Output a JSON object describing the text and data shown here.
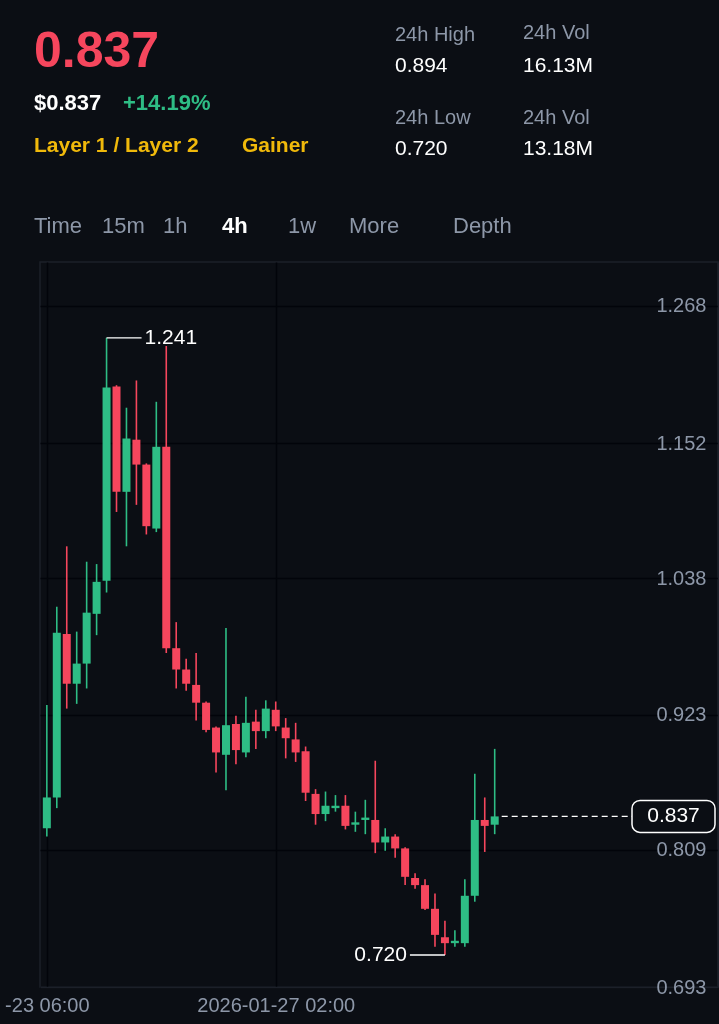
{
  "chart_data": {
    "type": "candlestick",
    "title": "0.837",
    "x": [
      "2026-01-23T06:00",
      "2026-01-23T10:00",
      "2026-01-23T14:00",
      "2026-01-23T18:00",
      "2026-01-23T22:00",
      "2026-01-24T02:00",
      "2026-01-24T06:00",
      "2026-01-24T10:00",
      "2026-01-24T14:00",
      "2026-01-24T18:00",
      "2026-01-24T22:00",
      "2026-01-25T02:00",
      "2026-01-25T06:00",
      "2026-01-25T10:00",
      "2026-01-25T14:00",
      "2026-01-25T18:00",
      "2026-01-25T22:00",
      "2026-01-26T02:00",
      "2026-01-26T06:00",
      "2026-01-26T10:00",
      "2026-01-26T14:00",
      "2026-01-26T18:00",
      "2026-01-26T22:00",
      "2026-01-27T02:00",
      "2026-01-27T06:00",
      "2026-01-27T10:00",
      "2026-01-27T14:00",
      "2026-01-27T18:00",
      "2026-01-27T22:00",
      "2026-01-28T02:00",
      "2026-01-28T06:00",
      "2026-01-28T10:00",
      "2026-01-28T14:00",
      "2026-01-28T18:00",
      "2026-01-28T22:00",
      "2026-01-29T02:00",
      "2026-01-29T06:00",
      "2026-01-29T10:00",
      "2026-01-29T14:00",
      "2026-01-29T18:00",
      "2026-01-29T22:00",
      "2026-01-30T02:00",
      "2026-01-30T06:00",
      "2026-01-30T10:00",
      "2026-01-30T14:00",
      "2026-01-30T18:00"
    ],
    "ohlc": [
      [
        0.827,
        0.931,
        0.82,
        0.853
      ],
      [
        0.853,
        1.014,
        0.844,
        0.992
      ],
      [
        0.991,
        1.065,
        0.928,
        0.949
      ],
      [
        0.949,
        0.993,
        0.932,
        0.966
      ],
      [
        0.966,
        1.052,
        0.945,
        1.009
      ],
      [
        1.008,
        1.05,
        0.99,
        1.035
      ],
      [
        1.036,
        1.241,
        1.026,
        1.199
      ],
      [
        1.2,
        1.201,
        1.094,
        1.111
      ],
      [
        1.111,
        1.182,
        1.065,
        1.156
      ],
      [
        1.155,
        1.205,
        1.1,
        1.134
      ],
      [
        1.134,
        1.135,
        1.075,
        1.082
      ],
      [
        1.08,
        1.187,
        1.077,
        1.149
      ],
      [
        1.149,
        1.234,
        0.975,
        0.979
      ],
      [
        0.979,
        1.001,
        0.945,
        0.961
      ],
      [
        0.961,
        0.97,
        0.943,
        0.949
      ],
      [
        0.948,
        0.975,
        0.918,
        0.933
      ],
      [
        0.933,
        0.934,
        0.908,
        0.91
      ],
      [
        0.912,
        0.913,
        0.874,
        0.891
      ],
      [
        0.889,
        0.996,
        0.859,
        0.914
      ],
      [
        0.915,
        0.922,
        0.881,
        0.893
      ],
      [
        0.891,
        0.938,
        0.887,
        0.916
      ],
      [
        0.917,
        0.927,
        0.894,
        0.909
      ],
      [
        0.909,
        0.935,
        0.903,
        0.928
      ],
      [
        0.927,
        0.934,
        0.909,
        0.913
      ],
      [
        0.912,
        0.92,
        0.886,
        0.903
      ],
      [
        0.902,
        0.916,
        0.883,
        0.891
      ],
      [
        0.892,
        0.896,
        0.85,
        0.857
      ],
      [
        0.856,
        0.86,
        0.83,
        0.839
      ],
      [
        0.839,
        0.858,
        0.833,
        0.846
      ],
      [
        0.844,
        0.855,
        0.841,
        0.846
      ],
      [
        0.846,
        0.855,
        0.826,
        0.829
      ],
      [
        0.83,
        0.841,
        0.824,
        0.832
      ],
      [
        0.834,
        0.851,
        0.822,
        0.836
      ],
      [
        0.834,
        0.884,
        0.806,
        0.815
      ],
      [
        0.815,
        0.827,
        0.808,
        0.82
      ],
      [
        0.82,
        0.822,
        0.802,
        0.81
      ],
      [
        0.81,
        0.811,
        0.779,
        0.786
      ],
      [
        0.785,
        0.789,
        0.776,
        0.779
      ],
      [
        0.779,
        0.784,
        0.758,
        0.759
      ],
      [
        0.759,
        0.772,
        0.727,
        0.737
      ],
      [
        0.735,
        0.749,
        0.72,
        0.73
      ],
      [
        0.73,
        0.741,
        0.727,
        0.732
      ],
      [
        0.73,
        0.784,
        0.727,
        0.77
      ],
      [
        0.77,
        0.873,
        0.765,
        0.834
      ],
      [
        0.834,
        0.853,
        0.807,
        0.829
      ],
      [
        0.83,
        0.894,
        0.822,
        0.837
      ]
    ],
    "colors": [
      "#2ebd85",
      "#2ebd85",
      "#f6465d",
      "#2ebd85",
      "#2ebd85",
      "#2ebd85",
      "#2ebd85",
      "#f6465d",
      "#2ebd85",
      "#f6465d",
      "#f6465d",
      "#2ebd85",
      "#f6465d",
      "#f6465d",
      "#f6465d",
      "#f6465d",
      "#f6465d",
      "#f6465d",
      "#2ebd85",
      "#f6465d",
      "#2ebd85",
      "#f6465d",
      "#2ebd85",
      "#f6465d",
      "#f6465d",
      "#f6465d",
      "#f6465d",
      "#f6465d",
      "#2ebd85",
      "#2ebd85",
      "#f6465d",
      "#2ebd85",
      "#2ebd85",
      "#f6465d",
      "#2ebd85",
      "#f6465d",
      "#f6465d",
      "#f6465d",
      "#f6465d",
      "#f6465d",
      "#f6465d",
      "#2ebd85",
      "#2ebd85",
      "#2ebd85",
      "#f6465d",
      "#2ebd85"
    ],
    "xlim": [
      "2026-01-23T03:15",
      "2026-02-03T11:45"
    ],
    "xticks": [
      {
        "value": "2026-01-23T06:00",
        "label": "-23 06:00"
      },
      {
        "value": "2026-01-27T02:00",
        "label": "2026-01-27 02:00"
      }
    ],
    "ylim": [
      0.693,
      1.305
    ],
    "yticks": [
      0.693,
      0.809,
      0.923,
      1.038,
      1.152,
      1.268
    ],
    "grid": true,
    "ref_lines": [
      {
        "axis": "y",
        "value": 0.837,
        "label": "0.837",
        "color": "#ffffff",
        "line_style": "dashed"
      }
    ],
    "annotations": [
      "$0.837",
      "+14.19%",
      "Layer 1 / Layer 2",
      "Gainer",
      "24h High",
      "0.894",
      "24h Low",
      "0.720",
      "24h Vol",
      "16.13M",
      "24h Vol",
      "13.18M",
      "Time",
      "15m",
      "1h",
      "4h",
      "1w",
      "More",
      "Depth",
      {
        "text": "1.241",
        "x": "2026-01-24T06:00",
        "y": 1.241
      },
      {
        "text": "0.720",
        "x": "2026-01-29T22:00",
        "y": 0.72
      }
    ]
  }
}
